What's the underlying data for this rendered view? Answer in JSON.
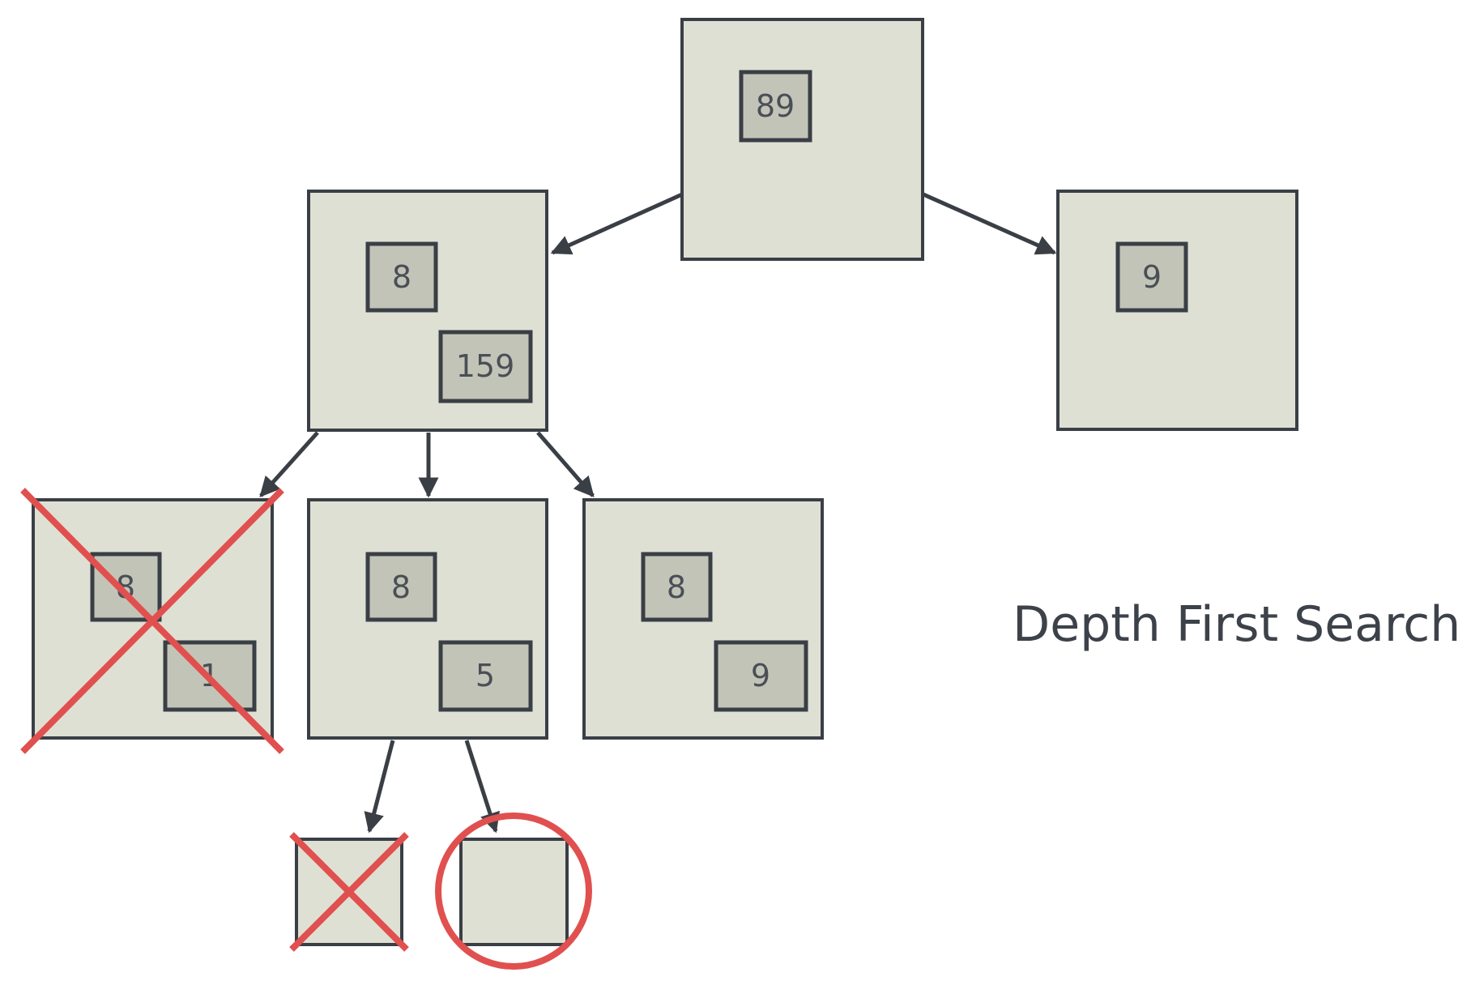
{
  "title": "Depth First Search",
  "colors": {
    "node_fill": "#dfe0d4",
    "item_fill": "#c3c4b8",
    "outline": "#3a3f46",
    "text": "#4a4f56",
    "mark": "#e0504f"
  },
  "nodes": {
    "root": {
      "items": [
        "89"
      ]
    },
    "left_child": {
      "items": [
        "8",
        "159"
      ]
    },
    "right_child": {
      "items": [
        "9"
      ]
    },
    "grandchild_1": {
      "items": [
        "8",
        "1"
      ],
      "status": "pruned"
    },
    "grandchild_2": {
      "items": [
        "8",
        "5"
      ]
    },
    "grandchild_3": {
      "items": [
        "8",
        "9"
      ]
    },
    "leaf_1": {
      "items": [],
      "status": "pruned"
    },
    "leaf_2": {
      "items": [],
      "status": "found"
    }
  }
}
